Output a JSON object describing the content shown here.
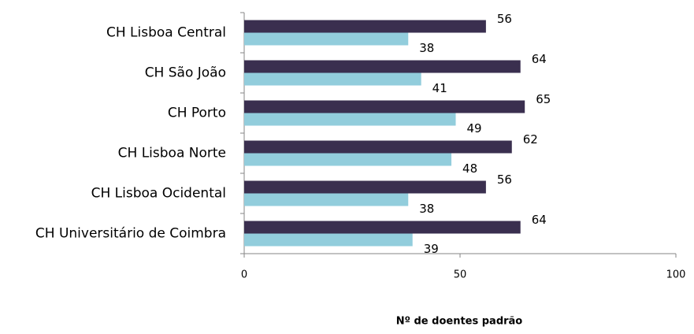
{
  "chart_data": {
    "type": "bar",
    "orientation": "horizontal",
    "categories": [
      "CH Lisboa Central",
      "CH São João",
      "CH Porto",
      "CH Lisboa Norte",
      "CH Lisboa Ocidental",
      "CH Universitário de Coimbra"
    ],
    "series": [
      {
        "color": "#3a2f4f",
        "values": [
          56,
          64,
          65,
          62,
          56,
          64
        ]
      },
      {
        "color": "#92cddc",
        "values": [
          38,
          41,
          49,
          48,
          38,
          39
        ]
      }
    ],
    "xlim": [
      0,
      100
    ],
    "xticks": [
      0,
      50,
      100
    ],
    "x_axis_label": "Nº de doentes padrão",
    "grid": false
  }
}
